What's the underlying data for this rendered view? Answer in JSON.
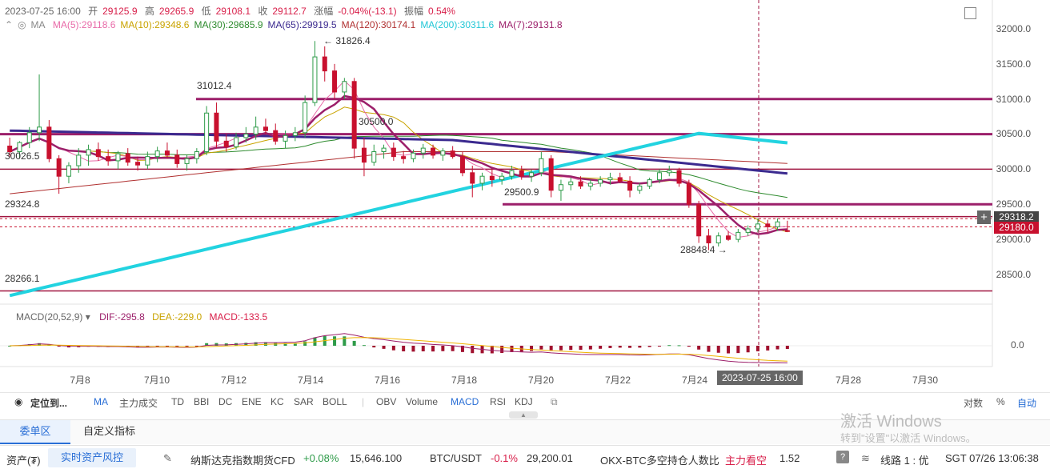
{
  "header": {
    "datetime": "2023-07-25 16:00",
    "open_label": "开",
    "open": "29125.9",
    "high_label": "高",
    "high": "29265.9",
    "low_label": "低",
    "low": "29108.1",
    "close_label": "收",
    "close": "29112.7",
    "change_label": "涨幅",
    "change": "-0.04%(-13.1)",
    "amp_label": "振幅",
    "amp": "0.54%"
  },
  "ma_legend": {
    "prefix": "MA",
    "items": [
      {
        "text": "MA(5):29118.6",
        "color": "#e86aa8"
      },
      {
        "text": "MA(10):29348.6",
        "color": "#c9a300"
      },
      {
        "text": "MA(30):29685.9",
        "color": "#2e8b2e"
      },
      {
        "text": "MA(65):29919.5",
        "color": "#3b2a8f"
      },
      {
        "text": "MA(120):30174.1",
        "color": "#b03030"
      },
      {
        "text": "MA(200):30311.6",
        "color": "#22c7d6"
      },
      {
        "text": "MA(7):29131.8",
        "color": "#9c1f6a"
      }
    ]
  },
  "y_ticks": [
    "32000.0",
    "31500.0",
    "31000.0",
    "30500.0",
    "30000.0",
    "29500.0",
    "29000.0",
    "28500.0"
  ],
  "price_tags": {
    "current": "29318.2",
    "last": "29180.0"
  },
  "level_labels": {
    "l31012": "31012.4",
    "l30500": "30500.0",
    "l30026": "30026.5",
    "l29500": "29500.9",
    "l29324": "29324.8",
    "l28266": "28266.1",
    "high_mark": "31826.4",
    "low_mark": "28848.4"
  },
  "macd": {
    "title": "MACD(20,52,9)",
    "dif": "DIF:-295.8",
    "dea": "DEA:-229.0",
    "macd": "MACD:-133.5",
    "zero": "0.0"
  },
  "x_ticks": [
    "7月8",
    "7月10",
    "7月12",
    "7月14",
    "7月16",
    "7月18",
    "7月20",
    "7月22",
    "7月24",
    "7月28",
    "7月30"
  ],
  "x_cursor": "2023-07-25 16:00",
  "toolbar": {
    "locate": "定位到...",
    "indicators": [
      "MA",
      "主力成交",
      "TD",
      "BBI",
      "DC",
      "ENE",
      "KC",
      "SAR",
      "BOLL",
      "OBV",
      "Volume",
      "MACD",
      "RSI",
      "KDJ"
    ],
    "log": "对数",
    "pct": "%",
    "auto": "自动"
  },
  "tabs": {
    "t1": "委单区",
    "t2": "自定义指标"
  },
  "status": {
    "assets": "资产(₮)",
    "risk_btn": "实时资产风控",
    "nasdaq": "纳斯达克指数期货CFD",
    "nasdaq_chg": "+0.08%",
    "nasdaq_val": "15,646.100",
    "btc": "BTC/USDT",
    "btc_chg": "-0.1%",
    "btc_val": "29,200.01",
    "okx": "OKX-BTC多空持仓人数比",
    "okx_tag": "主力看空",
    "okx_val": "1.52",
    "line": "线路 1 : 优",
    "time": "SGT  07/26 13:06:38"
  },
  "watermark": {
    "line1": "激活 Windows",
    "line2": "转到\"设置\"以激活 Windows。"
  },
  "chart_data": {
    "type": "candlestick",
    "interval": "4h",
    "ylim": [
      28200,
      32200
    ],
    "x_range": [
      "2023-07-07",
      "2023-07-31"
    ],
    "candles": [
      {
        "o": 30330,
        "h": 30450,
        "l": 30180,
        "c": 30250
      },
      {
        "o": 30250,
        "h": 30400,
        "l": 30150,
        "c": 30380
      },
      {
        "o": 30380,
        "h": 30600,
        "l": 30300,
        "c": 30520
      },
      {
        "o": 30520,
        "h": 31350,
        "l": 30400,
        "c": 30600
      },
      {
        "o": 30600,
        "h": 30700,
        "l": 30100,
        "c": 30150
      },
      {
        "o": 30150,
        "h": 30200,
        "l": 29650,
        "c": 29900
      },
      {
        "o": 29900,
        "h": 30100,
        "l": 29800,
        "c": 30050
      },
      {
        "o": 30050,
        "h": 30300,
        "l": 29950,
        "c": 30200
      },
      {
        "o": 30200,
        "h": 30350,
        "l": 30050,
        "c": 30280
      },
      {
        "o": 30280,
        "h": 30380,
        "l": 30120,
        "c": 30180
      },
      {
        "o": 30180,
        "h": 30280,
        "l": 30050,
        "c": 30120
      },
      {
        "o": 30120,
        "h": 30260,
        "l": 30000,
        "c": 30220
      },
      {
        "o": 30220,
        "h": 30300,
        "l": 30050,
        "c": 30100
      },
      {
        "o": 30100,
        "h": 30180,
        "l": 29980,
        "c": 30060
      },
      {
        "o": 30060,
        "h": 30250,
        "l": 30000,
        "c": 30180
      },
      {
        "o": 30180,
        "h": 30320,
        "l": 30100,
        "c": 30260
      },
      {
        "o": 30260,
        "h": 30380,
        "l": 30150,
        "c": 30200
      },
      {
        "o": 30200,
        "h": 30280,
        "l": 30020,
        "c": 30080
      },
      {
        "o": 30080,
        "h": 30200,
        "l": 29980,
        "c": 30150
      },
      {
        "o": 30150,
        "h": 30300,
        "l": 30080,
        "c": 30250
      },
      {
        "o": 30250,
        "h": 30900,
        "l": 30200,
        "c": 30800
      },
      {
        "o": 30800,
        "h": 30950,
        "l": 30300,
        "c": 30400
      },
      {
        "o": 30400,
        "h": 30500,
        "l": 30250,
        "c": 30320
      },
      {
        "o": 30320,
        "h": 30520,
        "l": 30280,
        "c": 30450
      },
      {
        "o": 30450,
        "h": 30600,
        "l": 30380,
        "c": 30500
      },
      {
        "o": 30500,
        "h": 30750,
        "l": 30420,
        "c": 30600
      },
      {
        "o": 30600,
        "h": 30720,
        "l": 30500,
        "c": 30550
      },
      {
        "o": 30550,
        "h": 30650,
        "l": 30350,
        "c": 30400
      },
      {
        "o": 30400,
        "h": 30550,
        "l": 30300,
        "c": 30480
      },
      {
        "o": 30480,
        "h": 30600,
        "l": 30400,
        "c": 30520
      },
      {
        "o": 30520,
        "h": 31050,
        "l": 30450,
        "c": 30950
      },
      {
        "o": 30950,
        "h": 31826,
        "l": 30900,
        "c": 31600
      },
      {
        "o": 31600,
        "h": 31750,
        "l": 31250,
        "c": 31400
      },
      {
        "o": 31400,
        "h": 31500,
        "l": 31000,
        "c": 31100
      },
      {
        "o": 31100,
        "h": 31300,
        "l": 31000,
        "c": 31250
      },
      {
        "o": 31250,
        "h": 31300,
        "l": 30150,
        "c": 30300
      },
      {
        "o": 30300,
        "h": 30450,
        "l": 29900,
        "c": 30100
      },
      {
        "o": 30100,
        "h": 30350,
        "l": 30050,
        "c": 30250
      },
      {
        "o": 30250,
        "h": 30350,
        "l": 30150,
        "c": 30300
      },
      {
        "o": 30300,
        "h": 30380,
        "l": 30120,
        "c": 30180
      },
      {
        "o": 30180,
        "h": 30260,
        "l": 30080,
        "c": 30150
      },
      {
        "o": 30150,
        "h": 30280,
        "l": 30100,
        "c": 30230
      },
      {
        "o": 30230,
        "h": 30360,
        "l": 30150,
        "c": 30300
      },
      {
        "o": 30300,
        "h": 30350,
        "l": 30150,
        "c": 30200
      },
      {
        "o": 30200,
        "h": 30300,
        "l": 30120,
        "c": 30260
      },
      {
        "o": 30260,
        "h": 30330,
        "l": 30150,
        "c": 30180
      },
      {
        "o": 30180,
        "h": 30250,
        "l": 29900,
        "c": 29950
      },
      {
        "o": 29950,
        "h": 30050,
        "l": 29600,
        "c": 29800
      },
      {
        "o": 29800,
        "h": 29950,
        "l": 29700,
        "c": 29900
      },
      {
        "o": 29900,
        "h": 30000,
        "l": 29750,
        "c": 29850
      },
      {
        "o": 29850,
        "h": 29950,
        "l": 29780,
        "c": 29900
      },
      {
        "o": 29900,
        "h": 30050,
        "l": 29850,
        "c": 29980
      },
      {
        "o": 29980,
        "h": 30050,
        "l": 29850,
        "c": 29900
      },
      {
        "o": 29900,
        "h": 30000,
        "l": 29820,
        "c": 29950
      },
      {
        "o": 29950,
        "h": 30250,
        "l": 29900,
        "c": 30150
      },
      {
        "o": 30150,
        "h": 30200,
        "l": 29600,
        "c": 29700
      },
      {
        "o": 29700,
        "h": 29850,
        "l": 29550,
        "c": 29780
      },
      {
        "o": 29780,
        "h": 29880,
        "l": 29700,
        "c": 29820
      },
      {
        "o": 29820,
        "h": 29900,
        "l": 29720,
        "c": 29760
      },
      {
        "o": 29760,
        "h": 29850,
        "l": 29700,
        "c": 29800
      },
      {
        "o": 29800,
        "h": 29900,
        "l": 29750,
        "c": 29850
      },
      {
        "o": 29850,
        "h": 29950,
        "l": 29780,
        "c": 29880
      },
      {
        "o": 29880,
        "h": 29950,
        "l": 29800,
        "c": 29830
      },
      {
        "o": 29830,
        "h": 29900,
        "l": 29600,
        "c": 29700
      },
      {
        "o": 29700,
        "h": 29800,
        "l": 29650,
        "c": 29760
      },
      {
        "o": 29760,
        "h": 29880,
        "l": 29720,
        "c": 29850
      },
      {
        "o": 29850,
        "h": 30000,
        "l": 29800,
        "c": 29950
      },
      {
        "o": 29950,
        "h": 30050,
        "l": 29900,
        "c": 29980
      },
      {
        "o": 29980,
        "h": 30020,
        "l": 29750,
        "c": 29800
      },
      {
        "o": 29800,
        "h": 29850,
        "l": 29450,
        "c": 29500
      },
      {
        "o": 29500,
        "h": 29550,
        "l": 28950,
        "c": 29050
      },
      {
        "o": 29050,
        "h": 29150,
        "l": 28848,
        "c": 28950
      },
      {
        "o": 28950,
        "h": 29100,
        "l": 28900,
        "c": 29050
      },
      {
        "o": 29050,
        "h": 29120,
        "l": 28980,
        "c": 29000
      },
      {
        "o": 29000,
        "h": 29150,
        "l": 28960,
        "c": 29100
      },
      {
        "o": 29100,
        "h": 29200,
        "l": 29050,
        "c": 29150
      },
      {
        "o": 29150,
        "h": 29300,
        "l": 29100,
        "c": 29220
      },
      {
        "o": 29220,
        "h": 29280,
        "l": 29100,
        "c": 29180
      },
      {
        "o": 29180,
        "h": 29300,
        "l": 29120,
        "c": 29250
      },
      {
        "o": 29125.9,
        "h": 29265.9,
        "l": 29108.1,
        "c": 29112.7
      }
    ],
    "horizontal_levels": [
      31000,
      30500,
      30000,
      29500,
      29324.8,
      29180,
      28266.1
    ]
  }
}
